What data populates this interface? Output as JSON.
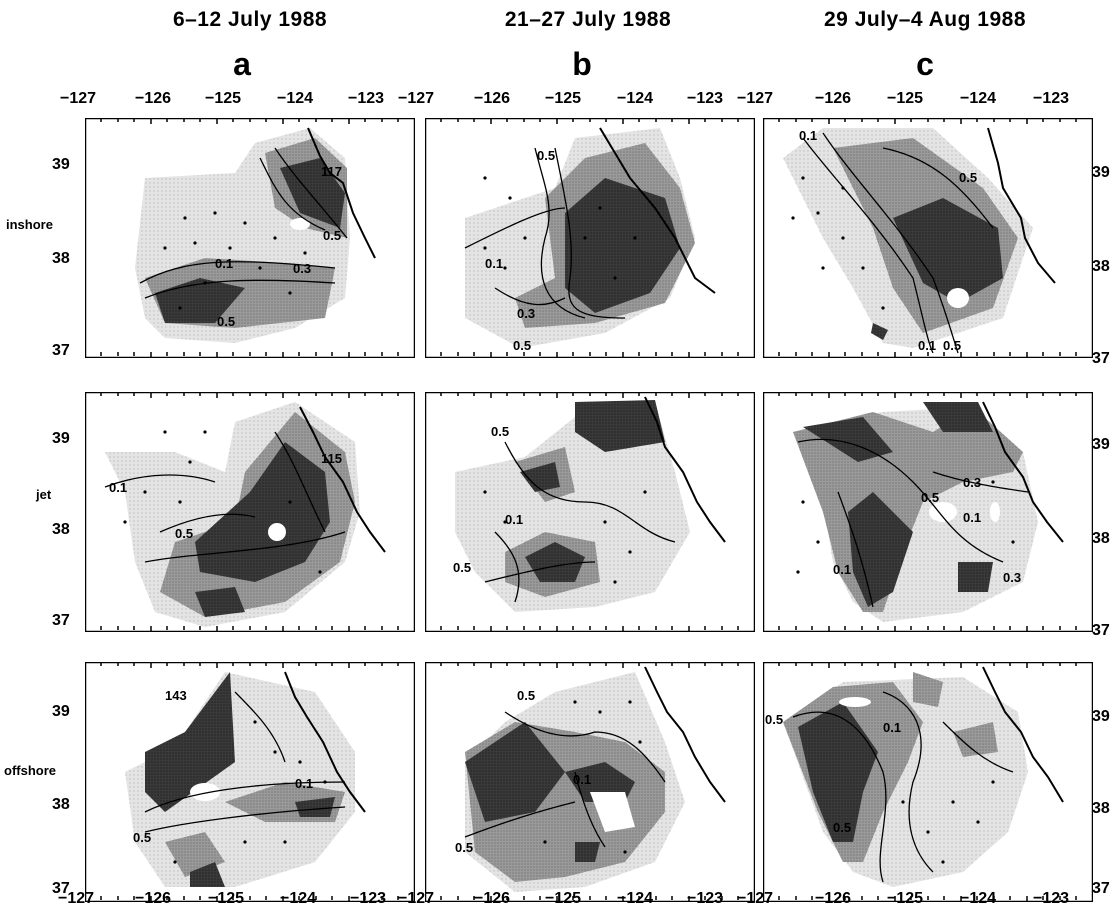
{
  "columns": [
    {
      "date": "6–12 July 1988",
      "letter": "a"
    },
    {
      "date": "21–27 July 1988",
      "letter": "b"
    },
    {
      "date": "29 July–4 Aug 1988",
      "letter": "c"
    }
  ],
  "rows": [
    {
      "label": "inshore"
    },
    {
      "label": "jet"
    },
    {
      "label": "offshore"
    }
  ],
  "axes": {
    "longitude_ticks": [
      "−127",
      "−126",
      "−125",
      "−124",
      "−123"
    ],
    "latitude_ticks": [
      "39",
      "38",
      "37"
    ]
  },
  "annotations": {
    "a_inshore_label": "117",
    "a_jet_label": "115",
    "a_offshore_label": "143",
    "c05": "0.5",
    "c01": "0.1",
    "c03": "0.3"
  }
}
